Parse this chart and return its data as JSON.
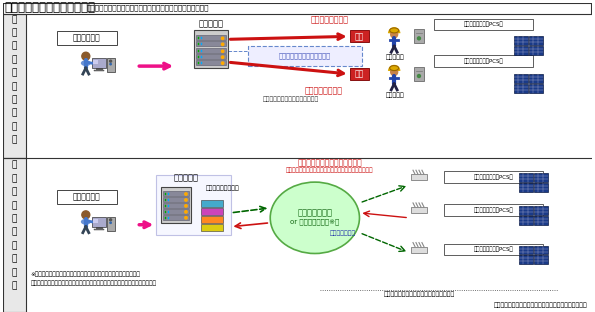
{
  "title": "＜出力制御システム概要図＞",
  "title_sub": "（電力各社にて発電出力規模によって例１または例２を適用）",
  "footer": "太陽光発電協会、電気事業連合会、日本電機工業会作成",
  "s1_label": "出力制御方法（例１）",
  "s2_label": "出力制御方法（例２）",
  "s1_denryoku": "【電力会社】",
  "s2_denryoku": "【電力会社】",
  "server_label": "電力サーバ",
  "haishi_top": "出力制御情報配信",
  "haishi_bot": "出力制御情報配信",
  "senyou": "専用通信回線（事業者負担）",
  "jigyosha_bot": "事業者負担（専用回線設置費等）",
  "shunin1": "主任技術者",
  "shunin2": "主任技術者",
  "seigyo": "制御",
  "pcs_label": "【出力制御機能付PCS】",
  "calendar_label": "出力制御カレンダー",
  "internet_line1": "インターネット",
  "internet_line2": "or 公衆通信網等（※）",
  "server_access": "サーバアクセス",
  "cal_acquire": "出力制御カレンダー取得・書換",
  "cal_acquire_sub": "（出力制御日・各日制御量設定・各日制御時間帯設定）",
  "jigyosha_s2": "事業者負担（インターネット回線契約等）",
  "note1": "※配信事業者等を介しての出力制御カレンダーを取得・書換えも可。",
  "note2": "　また、通信回線を使用しない等の場合はローカルカレンダーでの対応を想定。",
  "s2_server_label": "電力サーバ"
}
